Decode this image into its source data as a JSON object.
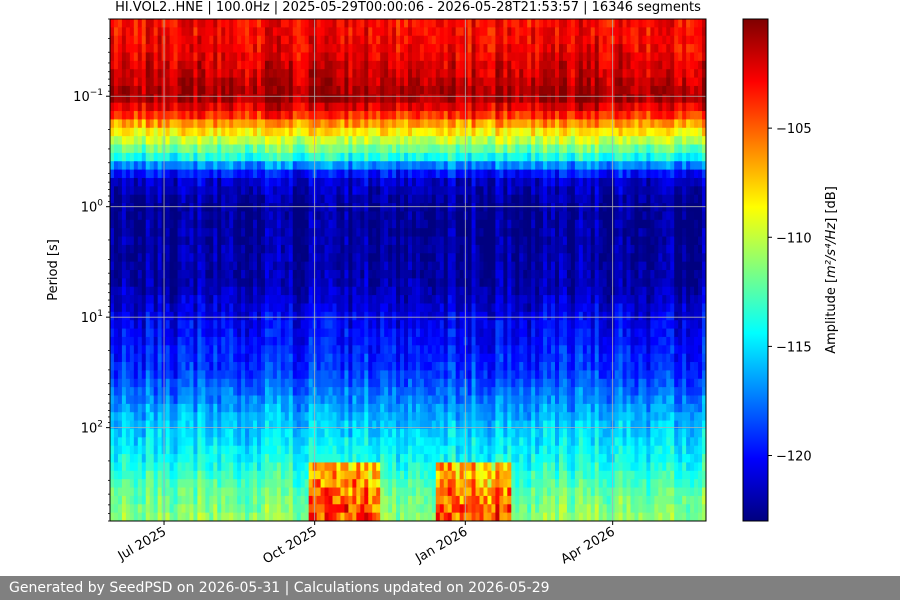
{
  "chart_data": {
    "type": "heatmap",
    "title": "HI.VOL2..HNE | 100.0Hz | 2025-05-29T00:00:06 - 2026-05-28T21:53:57 | 16346 segments",
    "xlabel": "",
    "ylabel": "Period [s]",
    "x_range": [
      "2025-05-29",
      "2026-05-28"
    ],
    "x_ticks": [
      {
        "date": "2025-07-01",
        "label": "Jul 2025"
      },
      {
        "date": "2025-10-01",
        "label": "Oct 2025"
      },
      {
        "date": "2026-01-01",
        "label": "Jan 2026"
      },
      {
        "date": "2026-04-01",
        "label": "Apr 2026"
      }
    ],
    "y_scale": "log",
    "y_inverted": true,
    "y_range": [
      0.02,
      700
    ],
    "y_ticks": [
      {
        "value": 0.1,
        "base": "10",
        "exp": "−1"
      },
      {
        "value": 1,
        "base": "10",
        "exp": "0"
      },
      {
        "value": 10,
        "base": "10",
        "exp": "1"
      },
      {
        "value": 100,
        "base": "10",
        "exp": "2"
      }
    ],
    "grid": true,
    "colormap": "jet",
    "colorbar": {
      "label_prefix": "Amplitude [",
      "label_unit": "m²/s⁴/Hz",
      "label_suffix": "] [dB]",
      "range": [
        -123,
        -100
      ],
      "ticks": [
        {
          "value": -105,
          "label": "−105"
        },
        {
          "value": -110,
          "label": "−110"
        },
        {
          "value": -115,
          "label": "−115"
        },
        {
          "value": -120,
          "label": "−120"
        }
      ]
    },
    "period_profile_db": [
      {
        "period": 0.02,
        "db": -103
      },
      {
        "period": 0.04,
        "db": -102.5
      },
      {
        "period": 0.07,
        "db": -101.5
      },
      {
        "period": 0.1,
        "db": -100.5
      },
      {
        "period": 0.14,
        "db": -103
      },
      {
        "period": 0.18,
        "db": -106.5
      },
      {
        "period": 0.25,
        "db": -110
      },
      {
        "period": 0.35,
        "db": -113.5
      },
      {
        "period": 0.45,
        "db": -118
      },
      {
        "period": 0.55,
        "db": -121
      },
      {
        "period": 1,
        "db": -122.5
      },
      {
        "period": 5,
        "db": -122
      },
      {
        "period": 10,
        "db": -120.5
      },
      {
        "period": 30,
        "db": -119
      },
      {
        "period": 80,
        "db": -116
      },
      {
        "period": 200,
        "db": -114
      },
      {
        "period": 400,
        "db": -112
      },
      {
        "period": 700,
        "db": -111
      }
    ],
    "high_noise_periods": [
      {
        "start": "2025-09-28",
        "end": "2025-11-10",
        "period_from": 200,
        "db_offset": 8
      },
      {
        "start": "2025-12-15",
        "end": "2026-01-28",
        "period_from": 200,
        "db_offset": 8
      }
    ]
  },
  "footer": {
    "text": "Generated by SeedPSD on 2026-05-31 | Calculations updated on 2026-05-29"
  }
}
